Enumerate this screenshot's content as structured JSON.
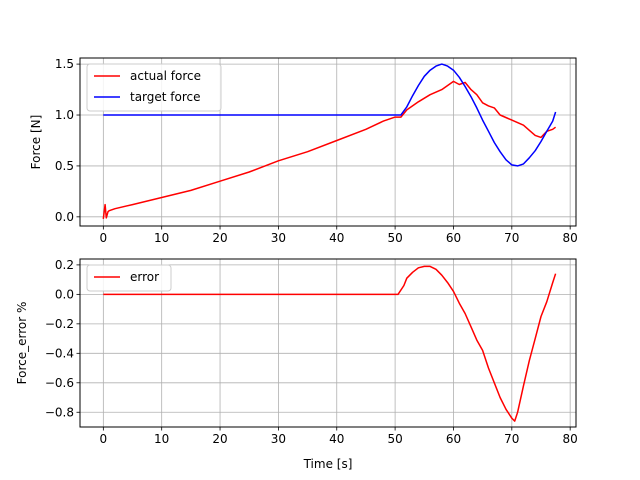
{
  "colors": {
    "actual": "#ff0000",
    "target": "#0000ff",
    "error": "#ff0000",
    "grid": "#b0b0b0"
  },
  "chart_data": [
    {
      "type": "line",
      "ylabel": "Force [N]",
      "xlabel": "",
      "xlim": [
        -4,
        81
      ],
      "ylim": [
        -0.09,
        1.56
      ],
      "xticks": [
        0,
        10,
        20,
        30,
        40,
        50,
        60,
        70,
        80
      ],
      "xtick_labels": [
        "0",
        "10",
        "20",
        "30",
        "40",
        "50",
        "60",
        "70",
        "80"
      ],
      "yticks": [
        0.0,
        0.5,
        1.0,
        1.5
      ],
      "ytick_labels": [
        "0.0",
        "0.5",
        "1.0",
        "1.5"
      ],
      "grid": true,
      "legend": "top-left",
      "series": [
        {
          "name": "actual force",
          "color": "#ff0000",
          "x": [
            0,
            0.3,
            0.5,
            0.8,
            1,
            2,
            5,
            10,
            15,
            20,
            25,
            30,
            35,
            40,
            45,
            48,
            50,
            51,
            52,
            54,
            56,
            58,
            60,
            61,
            62,
            63,
            64,
            65,
            66,
            67,
            68,
            70,
            72,
            73,
            74,
            75,
            76,
            77,
            77.5
          ],
          "y": [
            -0.02,
            0.12,
            -0.01,
            0.05,
            0.06,
            0.08,
            0.12,
            0.19,
            0.26,
            0.35,
            0.44,
            0.55,
            0.64,
            0.75,
            0.86,
            0.94,
            0.98,
            0.98,
            1.05,
            1.13,
            1.2,
            1.25,
            1.33,
            1.3,
            1.32,
            1.25,
            1.2,
            1.12,
            1.09,
            1.07,
            1.0,
            0.95,
            0.9,
            0.85,
            0.8,
            0.78,
            0.84,
            0.86,
            0.88
          ]
        },
        {
          "name": "target force",
          "color": "#0000ff",
          "x": [
            0,
            51,
            52,
            53,
            54,
            55,
            56,
            57,
            58,
            59,
            60,
            61,
            62,
            63,
            64,
            65,
            66,
            67,
            68,
            69,
            70,
            71,
            72,
            73,
            74,
            75,
            76,
            77,
            77.5
          ],
          "y": [
            1.0,
            1.0,
            1.08,
            1.19,
            1.29,
            1.38,
            1.44,
            1.48,
            1.5,
            1.48,
            1.44,
            1.37,
            1.28,
            1.18,
            1.07,
            0.95,
            0.84,
            0.73,
            0.64,
            0.56,
            0.51,
            0.5,
            0.52,
            0.58,
            0.65,
            0.74,
            0.84,
            0.94,
            1.03
          ]
        }
      ]
    },
    {
      "type": "line",
      "ylabel": "Force_error %",
      "xlabel": "Time [s]",
      "xlim": [
        -4,
        81
      ],
      "ylim": [
        -0.9,
        0.24
      ],
      "xticks": [
        0,
        10,
        20,
        30,
        40,
        50,
        60,
        70,
        80
      ],
      "xtick_labels": [
        "0",
        "10",
        "20",
        "30",
        "40",
        "50",
        "60",
        "70",
        "80"
      ],
      "yticks": [
        0.2,
        0.0,
        -0.2,
        -0.4,
        -0.6,
        -0.8
      ],
      "ytick_labels": [
        "0.2",
        "0.0",
        "−0.2",
        "−0.4",
        "−0.6",
        "−0.8"
      ],
      "grid": true,
      "legend": "top-left",
      "series": [
        {
          "name": "error",
          "color": "#ff0000",
          "x": [
            0,
            50.5,
            51.5,
            52,
            53,
            54,
            55,
            56,
            57,
            58,
            59,
            60,
            61,
            62,
            63,
            64,
            65,
            66,
            67,
            68,
            69,
            70,
            70.5,
            71,
            72,
            73,
            74,
            75,
            76,
            77,
            77.5
          ],
          "y": [
            0.0,
            0.0,
            0.06,
            0.11,
            0.15,
            0.18,
            0.19,
            0.19,
            0.17,
            0.13,
            0.08,
            0.02,
            -0.06,
            -0.13,
            -0.22,
            -0.31,
            -0.38,
            -0.5,
            -0.6,
            -0.7,
            -0.78,
            -0.84,
            -0.86,
            -0.8,
            -0.62,
            -0.45,
            -0.3,
            -0.15,
            -0.05,
            0.08,
            0.14
          ]
        }
      ]
    }
  ]
}
